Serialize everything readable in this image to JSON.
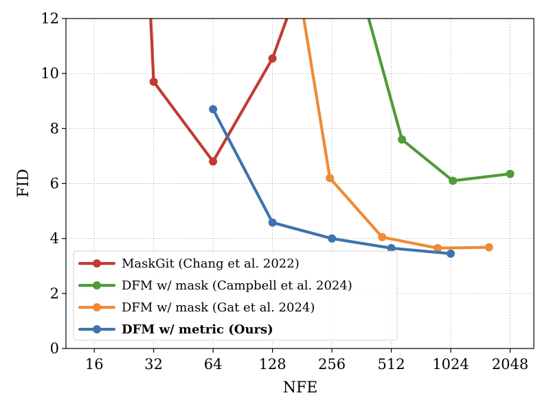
{
  "chart_data": {
    "type": "line",
    "xlabel": "NFE",
    "ylabel": "FID",
    "x_scale": "log2",
    "xlim": [
      11.5,
      2700
    ],
    "ylim": [
      0,
      12
    ],
    "grid": true,
    "legend_position": "lower-left",
    "x_ticks": [
      16,
      32,
      64,
      128,
      256,
      512,
      1024,
      2048
    ],
    "x_tick_labels": [
      "16",
      "32",
      "64",
      "128",
      "256",
      "512",
      "1024",
      "2048"
    ],
    "y_ticks": [
      0,
      2,
      4,
      6,
      8,
      10,
      12
    ],
    "y_tick_labels": [
      "0",
      "2",
      "4",
      "6",
      "8",
      "10",
      "12"
    ],
    "series": [
      {
        "name": "MaskGit (Chang et al. 2022)",
        "color": "#c23b32",
        "bold": false,
        "x": [
          30,
          32,
          64,
          128,
          170
        ],
        "y": [
          14,
          9.7,
          6.8,
          10.55,
          13
        ],
        "markers": [
          false,
          true,
          true,
          true,
          false
        ]
      },
      {
        "name": "DFM w/ mask (Campbell et al. 2024)",
        "color": "#4f9a39",
        "bold": false,
        "x": [
          360,
          580,
          1050,
          2048
        ],
        "y": [
          13,
          7.6,
          6.1,
          6.35
        ],
        "markers": [
          false,
          true,
          true,
          true
        ]
      },
      {
        "name": "DFM w/ mask (Gat et al. 2024)",
        "color": "#ef8a37",
        "bold": false,
        "x": [
          175,
          250,
          460,
          880,
          1600
        ],
        "y": [
          13,
          6.2,
          4.05,
          3.65,
          3.68
        ],
        "markers": [
          false,
          true,
          true,
          true,
          true
        ]
      },
      {
        "name": "DFM w/ metric (Ours)",
        "color": "#3d74ac",
        "bold": true,
        "x": [
          64,
          128,
          256,
          512,
          1024
        ],
        "y": [
          8.7,
          4.58,
          4.0,
          3.65,
          3.45
        ],
        "markers": [
          true,
          true,
          true,
          true,
          true
        ]
      }
    ]
  }
}
